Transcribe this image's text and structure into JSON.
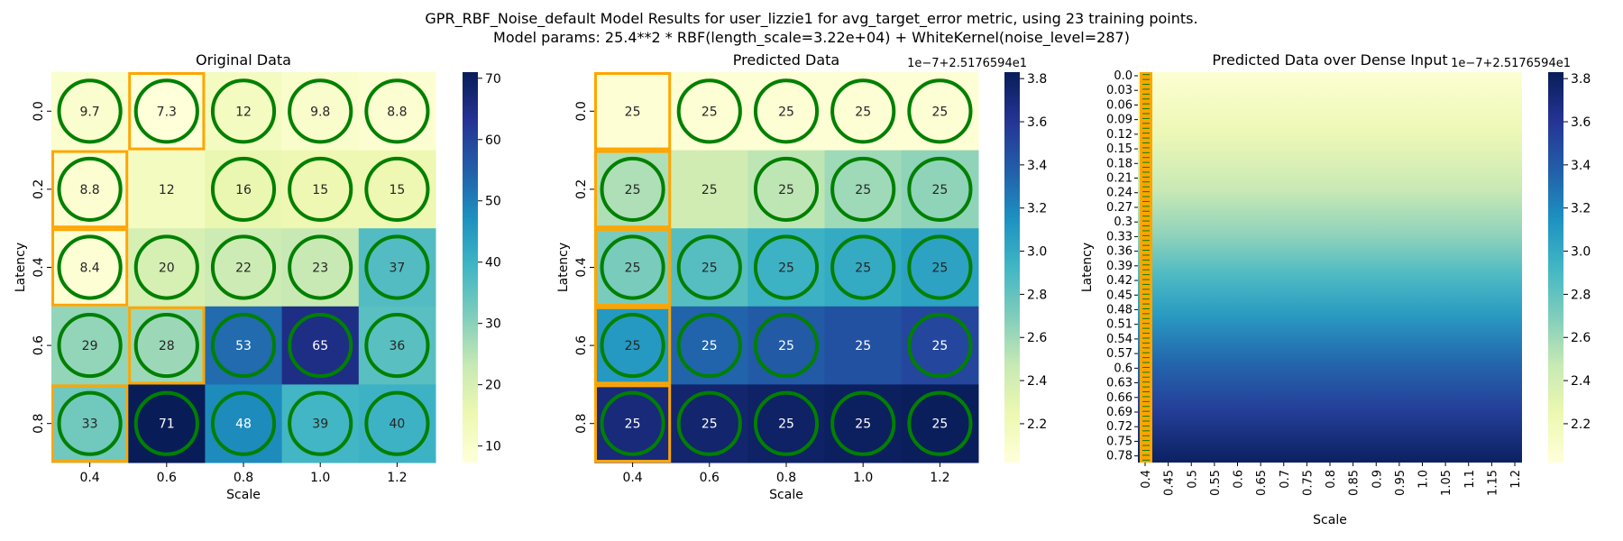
{
  "figure": {
    "title_line1": "GPR_RBF_Noise_default Model Results for user_lizzie1 for avg_target_error metric, using 23 training points.",
    "title_line2": "Model params: 25.4**2 * RBF(length_scale=3.22e+04) + WhiteKernel(noise_level=287)"
  },
  "chart_data": [
    {
      "type": "heatmap",
      "title": "Original Data",
      "xlabel": "Scale",
      "ylabel": "Latency",
      "x_ticks": [
        "0.4",
        "0.6",
        "0.8",
        "1.0",
        "1.2"
      ],
      "y_ticks": [
        "0.0",
        "0.2",
        "0.4",
        "0.6",
        "0.8"
      ],
      "values": [
        [
          9.7,
          7.3,
          12,
          9.8,
          8.8
        ],
        [
          8.8,
          12,
          16,
          15,
          15
        ],
        [
          8.4,
          20,
          22,
          23,
          37
        ],
        [
          29,
          28,
          53,
          65,
          36
        ],
        [
          33,
          71,
          48,
          39,
          40
        ]
      ],
      "cell_labels": [
        [
          "9.7",
          "7.3",
          "12",
          "9.8",
          "8.8"
        ],
        [
          "8.8",
          "12",
          "16",
          "15",
          "15"
        ],
        [
          "8.4",
          "20",
          "22",
          "23",
          "37"
        ],
        [
          "29",
          "28",
          "53",
          "65",
          "36"
        ],
        [
          "33",
          "71",
          "48",
          "39",
          "40"
        ]
      ],
      "colormap": "YlGnBu",
      "vmin": 7.3,
      "vmax": 71,
      "colorbar_ticks": [
        "10",
        "20",
        "30",
        "40",
        "50",
        "60",
        "70"
      ],
      "colorbar_offset": "",
      "circles": [
        [
          0,
          0
        ],
        [
          0,
          1
        ],
        [
          0,
          2
        ],
        [
          0,
          3
        ],
        [
          0,
          4
        ],
        [
          1,
          0
        ],
        [
          1,
          2
        ],
        [
          1,
          3
        ],
        [
          1,
          4
        ],
        [
          2,
          0
        ],
        [
          2,
          1
        ],
        [
          2,
          2
        ],
        [
          2,
          3
        ],
        [
          2,
          4
        ],
        [
          3,
          0
        ],
        [
          3,
          1
        ],
        [
          3,
          2
        ],
        [
          3,
          3
        ],
        [
          3,
          4
        ],
        [
          4,
          0
        ],
        [
          4,
          1
        ],
        [
          4,
          2
        ],
        [
          4,
          3
        ],
        [
          4,
          4
        ]
      ],
      "boxes": [
        [
          0,
          1
        ],
        [
          1,
          0
        ],
        [
          2,
          0
        ],
        [
          3,
          1
        ],
        [
          4,
          0
        ]
      ],
      "circle_color": "#008000",
      "box_color": "#ffa500"
    },
    {
      "type": "heatmap",
      "title": "Predicted Data",
      "xlabel": "Scale",
      "ylabel": "Latency",
      "x_ticks": [
        "0.4",
        "0.6",
        "0.8",
        "1.0",
        "1.2"
      ],
      "y_ticks": [
        "0.0",
        "0.2",
        "0.4",
        "0.6",
        "0.8"
      ],
      "values": [
        [
          2.05,
          2.05,
          2.05,
          2.05,
          2.05
        ],
        [
          2.55,
          2.42,
          2.5,
          2.6,
          2.65
        ],
        [
          2.72,
          2.85,
          2.95,
          3.0,
          3.05
        ],
        [
          3.1,
          3.35,
          3.4,
          3.45,
          3.5
        ],
        [
          3.7,
          3.75,
          3.78,
          3.8,
          3.82
        ]
      ],
      "cell_labels": [
        [
          "25",
          "25",
          "25",
          "25",
          "25"
        ],
        [
          "25",
          "25",
          "25",
          "25",
          "25"
        ],
        [
          "25",
          "25",
          "25",
          "25",
          "25"
        ],
        [
          "25",
          "25",
          "25",
          "25",
          "25"
        ],
        [
          "25",
          "25",
          "25",
          "25",
          "25"
        ]
      ],
      "colormap": "YlGnBu",
      "vmin": 2.02,
      "vmax": 3.83,
      "colorbar_ticks": [
        "2.2",
        "2.4",
        "2.6",
        "2.8",
        "3.0",
        "3.2",
        "3.4",
        "3.6",
        "3.8"
      ],
      "colorbar_offset": "1e−7+2.5176594e1",
      "circles": [
        [
          0,
          1
        ],
        [
          0,
          2
        ],
        [
          0,
          3
        ],
        [
          0,
          4
        ],
        [
          1,
          0
        ],
        [
          1,
          2
        ],
        [
          1,
          3
        ],
        [
          1,
          4
        ],
        [
          2,
          0
        ],
        [
          2,
          1
        ],
        [
          2,
          2
        ],
        [
          2,
          3
        ],
        [
          2,
          4
        ],
        [
          3,
          0
        ],
        [
          3,
          1
        ],
        [
          3,
          2
        ],
        [
          3,
          4
        ],
        [
          4,
          0
        ],
        [
          4,
          1
        ],
        [
          4,
          2
        ],
        [
          4,
          3
        ],
        [
          4,
          4
        ]
      ],
      "boxes": [
        [
          0,
          0
        ],
        [
          1,
          0
        ],
        [
          2,
          0
        ],
        [
          3,
          0
        ],
        [
          4,
          0
        ]
      ],
      "circle_color": "#008000",
      "box_color": "#ffa500"
    },
    {
      "type": "heatmap",
      "title": "Predicted Data over Dense Input",
      "xlabel": "Scale",
      "ylabel": "Latency",
      "x_ticks": [
        "0.4",
        "0.45",
        "0.5",
        "0.55",
        "0.6",
        "0.65",
        "0.7",
        "0.75",
        "0.8",
        "0.85",
        "0.9",
        "0.95",
        "1.0",
        "1.05",
        "1.1",
        "1.15",
        "1.2"
      ],
      "y_ticks": [
        "0.0",
        "0.03",
        "0.06",
        "0.09",
        "0.12",
        "0.15",
        "0.18",
        "0.21",
        "0.24",
        "0.27",
        "0.3",
        "0.33",
        "0.36",
        "0.39",
        "0.42",
        "0.45",
        "0.48",
        "0.51",
        "0.54",
        "0.57",
        "0.6",
        "0.63",
        "0.66",
        "0.69",
        "0.72",
        "0.75",
        "0.78"
      ],
      "dense_range": [
        2.02,
        3.83
      ],
      "colormap": "YlGnBu",
      "vmin": 2.02,
      "vmax": 3.83,
      "colorbar_ticks": [
        "2.2",
        "2.4",
        "2.6",
        "2.8",
        "3.0",
        "3.2",
        "3.4",
        "3.6",
        "3.8"
      ],
      "colorbar_offset": "1e−7+2.5176594e1",
      "box_color": "#ffa500",
      "circle_color": "#008000"
    }
  ]
}
